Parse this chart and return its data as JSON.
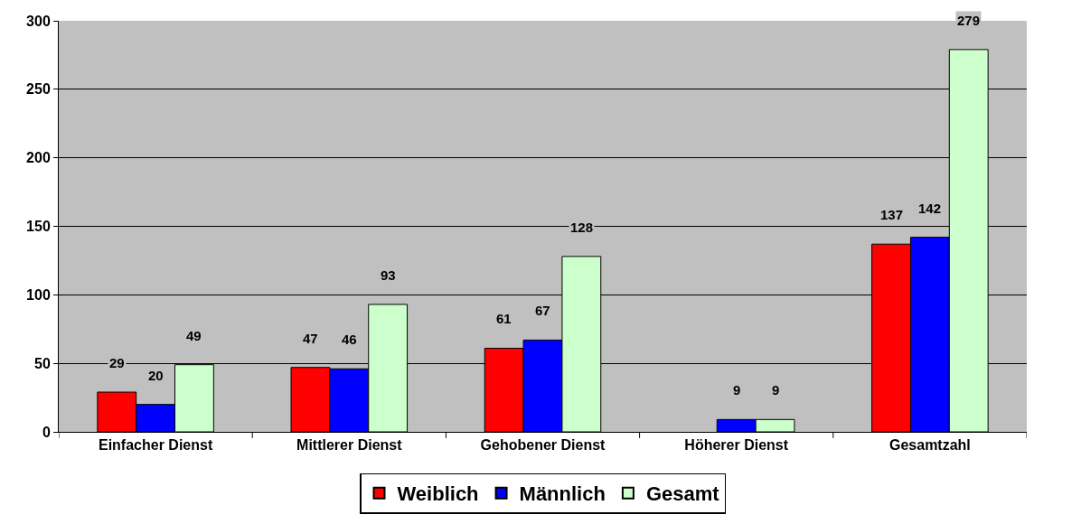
{
  "chart_data": {
    "type": "bar",
    "categories": [
      "Einfacher Dienst",
      "Mittlerer Dienst",
      "Gehobener Dienst",
      "Höherer Dienst",
      "Gesamtzahl"
    ],
    "series": [
      {
        "name": "Weiblich",
        "color": "#ff0000",
        "values": [
          29,
          47,
          61,
          null,
          137
        ]
      },
      {
        "name": "Männlich",
        "color": "#0000ff",
        "values": [
          20,
          46,
          67,
          9,
          142
        ]
      },
      {
        "name": "Gesamt",
        "color": "#ccffcc",
        "values": [
          49,
          93,
          128,
          9,
          279
        ]
      }
    ],
    "ylim": [
      0,
      300
    ],
    "yticks": [
      0,
      50,
      100,
      150,
      200,
      250,
      300
    ],
    "grid": "y",
    "legend": "bottom",
    "data_labels": true
  }
}
